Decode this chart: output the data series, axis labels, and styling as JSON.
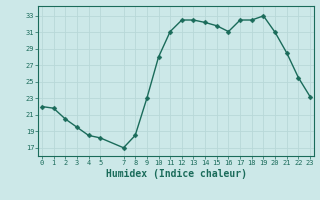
{
  "x": [
    0,
    1,
    2,
    3,
    4,
    5,
    7,
    8,
    9,
    10,
    11,
    12,
    13,
    14,
    15,
    16,
    17,
    18,
    19,
    20,
    21,
    22,
    23
  ],
  "y": [
    22.0,
    21.8,
    20.5,
    19.5,
    18.5,
    18.2,
    17.0,
    18.5,
    23.0,
    28.0,
    31.1,
    32.5,
    32.5,
    32.2,
    31.8,
    31.1,
    32.5,
    32.5,
    33.0,
    31.0,
    28.5,
    25.5,
    23.2
  ],
  "line_color": "#1a6b5a",
  "bg_color": "#cce8e8",
  "grid_color": "#b8d8d8",
  "xlabel": "Humidex (Indice chaleur)",
  "xlabel_fontsize": 7,
  "xticks": [
    0,
    1,
    2,
    3,
    4,
    5,
    7,
    8,
    9,
    10,
    11,
    12,
    13,
    14,
    15,
    16,
    17,
    18,
    19,
    20,
    21,
    22,
    23
  ],
  "xtick_labels": [
    "0",
    "1",
    "2",
    "3",
    "4",
    "5",
    "7",
    "8",
    "9",
    "10",
    "11",
    "12",
    "13",
    "14",
    "15",
    "16",
    "17",
    "18",
    "19",
    "20",
    "21",
    "22",
    "23"
  ],
  "yticks": [
    17,
    19,
    21,
    23,
    25,
    27,
    29,
    31,
    33
  ],
  "ylim": [
    16.0,
    34.2
  ],
  "xlim": [
    -0.3,
    23.3
  ],
  "marker_size": 2.5,
  "linewidth": 1.0
}
